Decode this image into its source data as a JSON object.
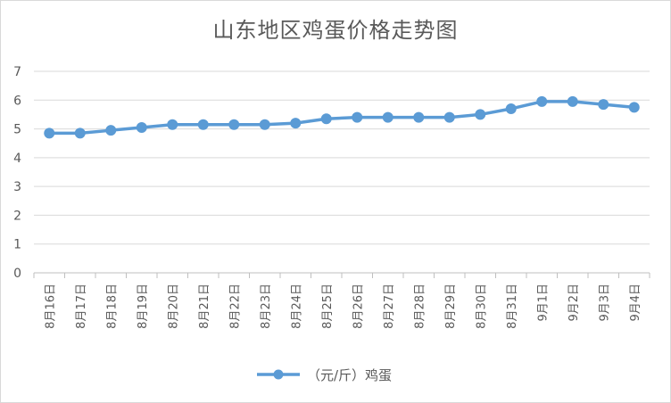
{
  "title": "山东地区鸡蛋价格走势图",
  "chart_data": {
    "type": "line",
    "title": "山东地区鸡蛋价格走势图",
    "xlabel": "",
    "ylabel": "",
    "ylim": [
      0,
      7
    ],
    "yticks": [
      "0",
      "1",
      "2",
      "3",
      "4",
      "5",
      "6",
      "7"
    ],
    "grid": true,
    "legend_position": "bottom",
    "categories": [
      "8月16日",
      "8月17日",
      "8月18日",
      "8月19日",
      "8月20日",
      "8月21日",
      "8月22日",
      "8月23日",
      "8月24日",
      "8月25日",
      "8月26日",
      "8月27日",
      "8月28日",
      "8月29日",
      "8月30日",
      "8月31日",
      "9月1日",
      "9月2日",
      "9月3日",
      "9月4日"
    ],
    "series": [
      {
        "name": "（元/斤）鸡蛋",
        "color": "#5b9bd5",
        "values": [
          4.85,
          4.85,
          4.95,
          5.05,
          5.15,
          5.15,
          5.15,
          5.15,
          5.2,
          5.35,
          5.4,
          5.4,
          5.4,
          5.4,
          5.5,
          5.7,
          5.95,
          5.95,
          5.85,
          5.75
        ]
      }
    ]
  }
}
